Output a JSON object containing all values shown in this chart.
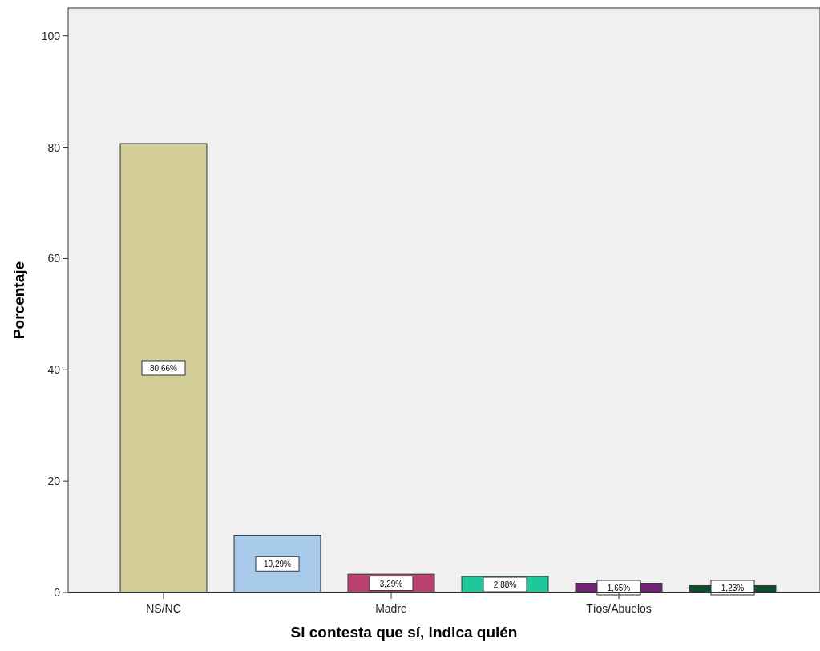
{
  "chart_data": {
    "type": "bar",
    "xlabel": "Si contesta que sí, indica quién",
    "ylabel": "Porcentaje",
    "categories": [
      "NS/NC",
      null,
      "Madre",
      null,
      "Tíos/Abuelos",
      null
    ],
    "values": [
      80.66,
      10.29,
      3.29,
      2.88,
      1.65,
      1.23
    ],
    "colors": [
      "#d3ce97",
      "#a9cbeb",
      "#b9416f",
      "#1fc89a",
      "#6f2375",
      "#0e4d2d"
    ],
    "value_labels": [
      "80,66%",
      "10,29%",
      "3,29%",
      "2,88%",
      "1,65%",
      "1,23%"
    ],
    "ylim": [
      0,
      105
    ],
    "yticks": [
      0,
      20,
      40,
      60,
      80,
      100
    ],
    "grid": false
  }
}
